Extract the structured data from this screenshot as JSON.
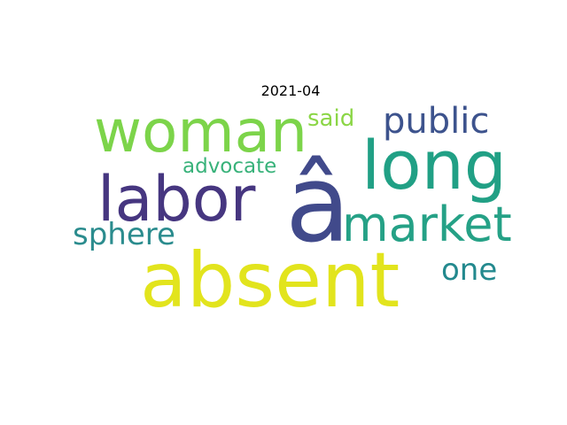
{
  "title": "2021-04",
  "words": [
    {
      "text": "absent",
      "color": "#e2e41d"
    },
    {
      "text": "â",
      "color": "#414a8b"
    },
    {
      "text": "long",
      "color": "#21a085"
    },
    {
      "text": "woman",
      "color": "#7cd44a"
    },
    {
      "text": "labor",
      "color": "#463680"
    },
    {
      "text": "market",
      "color": "#25a186"
    },
    {
      "text": "public",
      "color": "#3d538d"
    },
    {
      "text": "sphere",
      "color": "#2b8c8e"
    },
    {
      "text": "one",
      "color": "#23898e"
    },
    {
      "text": "said",
      "color": "#8bd646"
    },
    {
      "text": "advocate",
      "color": "#38b27a"
    }
  ]
}
